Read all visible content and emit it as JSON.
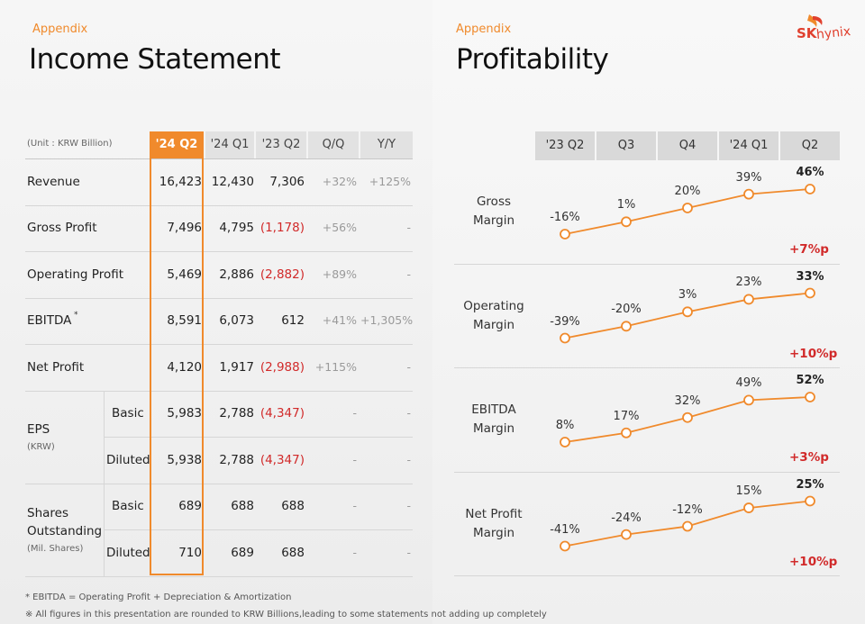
{
  "left": {
    "appendix": "Appendix",
    "title": "Income Statement",
    "unit": "(Unit : KRW Billion)",
    "columns": [
      "'24 Q2",
      "'24 Q1",
      "'23 Q2",
      "Q/Q",
      "Y/Y"
    ],
    "rows": [
      {
        "label": "Revenue",
        "values": [
          "16,423",
          "12,430",
          "7,306",
          "+32%",
          "+125%"
        ]
      },
      {
        "label": "Gross Profit",
        "values": [
          "7,496",
          "4,795",
          "(1,178)",
          "+56%",
          "-"
        ]
      },
      {
        "label": "Operating Profit",
        "values": [
          "5,469",
          "2,886",
          "(2,882)",
          "+89%",
          "-"
        ]
      },
      {
        "label": "EBITDA",
        "sup": "*",
        "values": [
          "8,591",
          "6,073",
          "612",
          "+41%",
          "+1,305%"
        ]
      },
      {
        "label": "Net Profit",
        "values": [
          "4,120",
          "1,917",
          "(2,988)",
          "+115%",
          "-"
        ]
      }
    ],
    "eps": {
      "label": "EPS",
      "unit": "(KRW)",
      "basic": {
        "label": "Basic",
        "values": [
          "5,983",
          "2,788",
          "(4,347)",
          "-",
          "-"
        ]
      },
      "diluted": {
        "label": "Diluted",
        "values": [
          "5,938",
          "2,788",
          "(4,347)",
          "-",
          "-"
        ]
      }
    },
    "shares": {
      "label1": "Shares",
      "label2": "Outstanding",
      "unit": "(Mil. Shares)",
      "basic": {
        "label": "Basic",
        "values": [
          "689",
          "688",
          "688",
          "-",
          "-"
        ]
      },
      "diluted": {
        "label": "Diluted",
        "values": [
          "710",
          "689",
          "688",
          "-",
          "-"
        ]
      }
    },
    "footnote1": "* EBITDA = Operating Profit + Depreciation & Amortization",
    "footnote2": "※ All figures in this presentation are rounded to KRW Billions,leading to some statements not adding up completely"
  },
  "right": {
    "appendix": "Appendix",
    "title": "Profitability",
    "logo_sk": "SK",
    "logo_hynix": "hynix",
    "columns": [
      "'23 Q2",
      "Q3",
      "Q4",
      "'24 Q1",
      "Q2"
    ],
    "rows": [
      {
        "label1": "Gross",
        "label2": "Margin",
        "values": [
          -16,
          1,
          20,
          39,
          46
        ],
        "labels": [
          "-16%",
          "1%",
          "20%",
          "39%",
          "46%"
        ],
        "delta": "+7%p"
      },
      {
        "label1": "Operating",
        "label2": "Margin",
        "values": [
          -39,
          -20,
          3,
          23,
          33
        ],
        "labels": [
          "-39%",
          "-20%",
          "3%",
          "23%",
          "33%"
        ],
        "delta": "+10%p"
      },
      {
        "label1": "EBITDA",
        "label2": "Margin",
        "values": [
          8,
          17,
          32,
          49,
          52
        ],
        "labels": [
          "8%",
          "17%",
          "32%",
          "49%",
          "52%"
        ],
        "delta": "+3%p"
      },
      {
        "label1": "Net Profit",
        "label2": "Margin",
        "values": [
          -41,
          -24,
          -12,
          15,
          25
        ],
        "labels": [
          "-41%",
          "-24%",
          "-12%",
          "15%",
          "25%"
        ],
        "delta": "+10%p"
      }
    ]
  },
  "colors": {
    "accent": "#f08a2c",
    "negative": "#d12a2a",
    "header_bg": "#e2e2e2"
  }
}
